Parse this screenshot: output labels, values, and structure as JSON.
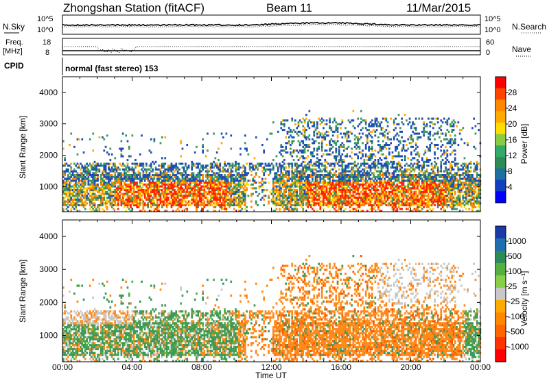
{
  "header": {
    "station": "Zhongshan Station (fitACF)",
    "beam": "Beam 11",
    "date": "11/Mar/2015"
  },
  "noise_panel": {
    "left_label": "N.Sky",
    "right_label": "N.Search",
    "left_ticks": [
      "10^5",
      "10^0"
    ],
    "right_ticks": [
      "10^5",
      "10^0"
    ]
  },
  "freq_panel": {
    "left_label_1": "Freq.",
    "left_label_2": "[MHz]",
    "right_label": "Nave",
    "left_ticks": [
      "18",
      "8"
    ],
    "right_ticks": [
      "60",
      "0"
    ]
  },
  "cpid_panel": {
    "label": "CPID",
    "text": "normal (fast stereo) 153"
  },
  "chart_data": [
    {
      "type": "heatmap",
      "quantity": "power",
      "ylabel": "Slant Range [km]",
      "yticks": [
        "1000",
        "2000",
        "3000",
        "4000"
      ],
      "ylim": [
        200,
        4500
      ],
      "xlim_hours": [
        0,
        24
      ],
      "colorbar_label": "Power [dB]",
      "colorbar_ticks": [
        "28",
        "24",
        "20",
        "16",
        "12",
        "8",
        "4"
      ],
      "colorbar_colors": [
        "#ff0000",
        "#ff4400",
        "#ff8800",
        "#ffaa00",
        "#ffdd00",
        "#88cc44",
        "#33aa66",
        "#2e8b57",
        "#1e6fa0",
        "#1040c0",
        "#0000ff"
      ]
    },
    {
      "type": "heatmap",
      "quantity": "velocity",
      "ylabel": "Slant Range [km]",
      "yticks": [
        "1000",
        "2000",
        "3000",
        "4000"
      ],
      "ylim": [
        200,
        4500
      ],
      "xlim_hours": [
        0,
        24
      ],
      "colorbar_label": "Velocity [m s⁻¹]",
      "colorbar_ticks": [
        "1000",
        "500",
        "100",
        "25",
        "-25",
        "-100",
        "-500",
        "-1000"
      ],
      "colorbar_colors": [
        "#1a3aa8",
        "#1f6fb0",
        "#2e8b57",
        "#55b040",
        "#88d048",
        "#c8c8c8",
        "#ffaa00",
        "#ff8800",
        "#ff6600",
        "#ff3300",
        "#ff0000"
      ]
    }
  ],
  "x_axis": {
    "ticks": [
      "00:00",
      "04:00",
      "08:00",
      "12:00",
      "16:00",
      "20:00",
      "00:00"
    ],
    "label": "Time UT"
  },
  "colors": {
    "power_red": "#ff2200",
    "power_orange": "#ff8800",
    "power_green": "#3c9a5a",
    "power_blue": "#1f4fb5",
    "vel_orange": "#ff8a1a",
    "vel_green": "#3c9a5a",
    "vel_gray": "#c8c8c8"
  }
}
